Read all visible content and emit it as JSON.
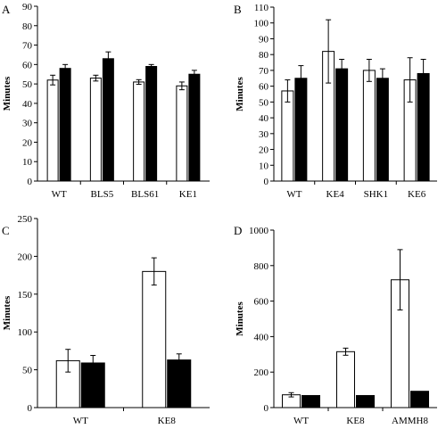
{
  "colors": {
    "open_bar": "#ffffff",
    "filled_bar": "#000000",
    "axis": "#000000"
  },
  "chart_data": [
    {
      "panel": "A",
      "type": "bar",
      "ylabel": "Minutes",
      "ylim": [
        0,
        90
      ],
      "yticks": [
        0,
        10,
        20,
        30,
        40,
        50,
        60,
        70,
        80,
        90
      ],
      "categories": [
        "WT",
        "BLS5",
        "BLS61",
        "KE1"
      ],
      "series": [
        {
          "style": "open",
          "values": [
            52,
            53,
            51,
            49
          ],
          "errors": [
            2.5,
            1.5,
            1.2,
            2
          ]
        },
        {
          "style": "filled",
          "values": [
            58,
            63,
            59,
            55
          ],
          "errors": [
            2,
            3.5,
            1,
            2
          ]
        }
      ]
    },
    {
      "panel": "B",
      "type": "bar",
      "ylabel": "Minutes",
      "ylim": [
        0,
        110
      ],
      "yticks": [
        0,
        10,
        20,
        30,
        40,
        50,
        60,
        70,
        80,
        90,
        100,
        110
      ],
      "categories": [
        "WT",
        "KE4",
        "SHK1",
        "KE6"
      ],
      "series": [
        {
          "style": "open",
          "values": [
            57,
            82,
            70,
            64
          ],
          "errors": [
            7,
            20,
            7,
            14
          ]
        },
        {
          "style": "filled",
          "values": [
            65,
            71,
            65,
            68
          ],
          "errors": [
            8,
            6,
            6,
            9
          ]
        }
      ]
    },
    {
      "panel": "C",
      "type": "bar",
      "ylabel": "Minutes",
      "ylim": [
        0,
        250
      ],
      "yticks": [
        0,
        50,
        100,
        150,
        200,
        250
      ],
      "categories": [
        "WT",
        "KE8"
      ],
      "series": [
        {
          "style": "open",
          "values": [
            62,
            180
          ],
          "errors": [
            15,
            18
          ]
        },
        {
          "style": "filled",
          "values": [
            59,
            63
          ],
          "errors": [
            10,
            8
          ]
        }
      ]
    },
    {
      "panel": "D",
      "type": "bar",
      "ylabel": "Minutes",
      "ylim": [
        0,
        1000
      ],
      "yticks": [
        0,
        200,
        400,
        600,
        800,
        1000
      ],
      "categories": [
        "WT",
        "KE8",
        "AMMH8"
      ],
      "series": [
        {
          "style": "open",
          "values": [
            72,
            315,
            720
          ],
          "errors": [
            12,
            20,
            170
          ]
        },
        {
          "style": "filled",
          "values": [
            68,
            68,
            92
          ],
          "errors": [
            0,
            0,
            0
          ]
        }
      ]
    }
  ]
}
